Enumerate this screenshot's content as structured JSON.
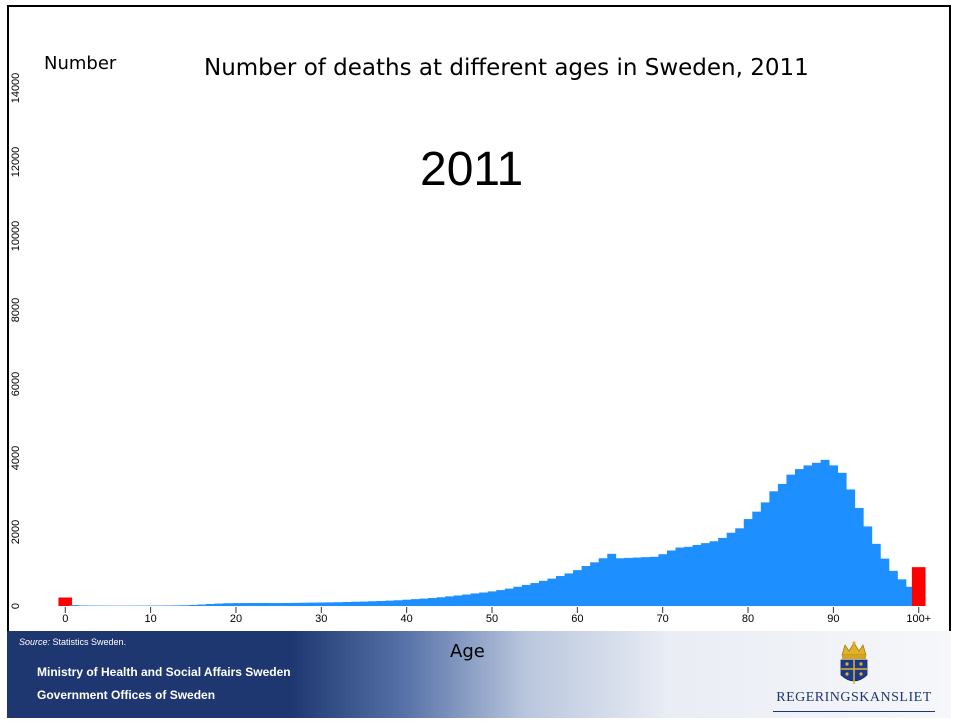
{
  "slide": {
    "title": "Number of deaths at different ages in Sweden, 2011",
    "y_axis_label": "Number",
    "year_label": "2011",
    "x_axis_label": "Age"
  },
  "footer": {
    "source_prefix": "Source:",
    "source_text": " Statistics Sweden.",
    "ministry": "Ministry of Health and Social Affairs Sweden",
    "offices": "Government Offices of Sweden",
    "logo_text": "REGERINGSKANSLIET",
    "crest_icon": "swedish-royal-crest-icon"
  },
  "chart_data": {
    "type": "bar",
    "title": "Number of deaths at different ages in Sweden, 2011",
    "xlabel": "Age",
    "ylabel": "Number",
    "ylim": [
      0,
      14000
    ],
    "yticks": [
      "0",
      "2000",
      "4000",
      "6000",
      "8000",
      "10000",
      "12000",
      "14000"
    ],
    "xticks": [
      "0",
      "10",
      "20",
      "30",
      "40",
      "50",
      "60",
      "70",
      "80",
      "90",
      "100+"
    ],
    "colors": {
      "bars": "#1e8fff",
      "highlight": "#ff0000"
    },
    "highlighted_categories": [
      "0",
      "100+"
    ],
    "categories": [
      "0",
      "1",
      "2",
      "3",
      "4",
      "5",
      "6",
      "7",
      "8",
      "9",
      "10",
      "11",
      "12",
      "13",
      "14",
      "15",
      "16",
      "17",
      "18",
      "19",
      "20",
      "21",
      "22",
      "23",
      "24",
      "25",
      "26",
      "27",
      "28",
      "29",
      "30",
      "31",
      "32",
      "33",
      "34",
      "35",
      "36",
      "37",
      "38",
      "39",
      "40",
      "41",
      "42",
      "43",
      "44",
      "45",
      "46",
      "47",
      "48",
      "49",
      "50",
      "51",
      "52",
      "53",
      "54",
      "55",
      "56",
      "57",
      "58",
      "59",
      "60",
      "61",
      "62",
      "63",
      "64",
      "65",
      "66",
      "67",
      "68",
      "69",
      "70",
      "71",
      "72",
      "73",
      "74",
      "75",
      "76",
      "77",
      "78",
      "79",
      "80",
      "81",
      "82",
      "83",
      "84",
      "85",
      "86",
      "87",
      "88",
      "89",
      "90",
      "91",
      "92",
      "93",
      "94",
      "95",
      "96",
      "97",
      "98",
      "99",
      "100+"
    ],
    "values": [
      230,
      25,
      15,
      12,
      10,
      10,
      9,
      9,
      10,
      10,
      12,
      12,
      14,
      16,
      20,
      28,
      40,
      55,
      65,
      75,
      78,
      80,
      82,
      82,
      80,
      80,
      82,
      85,
      88,
      92,
      95,
      98,
      102,
      108,
      115,
      120,
      128,
      135,
      145,
      155,
      170,
      185,
      200,
      215,
      235,
      260,
      285,
      310,
      340,
      365,
      395,
      430,
      470,
      520,
      570,
      620,
      680,
      740,
      810,
      880,
      970,
      1080,
      1180,
      1290,
      1410,
      1290,
      1300,
      1310,
      1320,
      1330,
      1400,
      1500,
      1580,
      1600,
      1650,
      1700,
      1750,
      1840,
      1980,
      2100,
      2350,
      2550,
      2800,
      3100,
      3300,
      3550,
      3700,
      3800,
      3870,
      3950,
      3800,
      3600,
      3150,
      2650,
      2150,
      1680,
      1280,
      950,
      720,
      520,
      1050
    ]
  }
}
